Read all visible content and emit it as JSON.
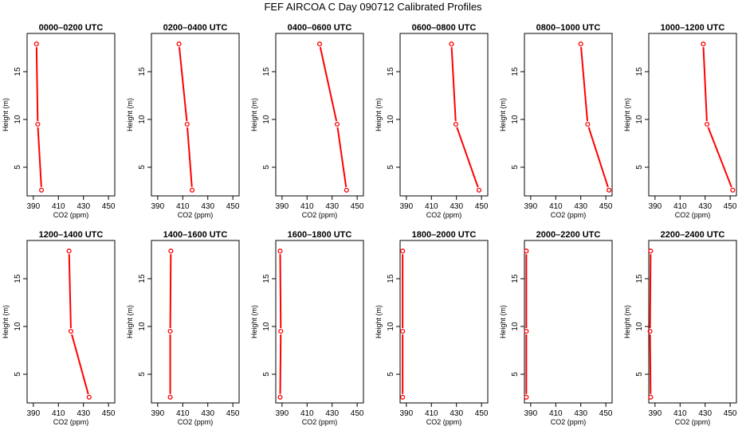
{
  "figure": {
    "title": "FEF AIRCOA C  Day 090712  Calibrated Profiles"
  },
  "style": {
    "line_color": "#ff0000",
    "axis_color": "#000000"
  },
  "chart_data": [
    {
      "type": "line",
      "title": "0000–0200 UTC",
      "xlabel": "CO2 (ppm)",
      "ylabel": "Height (m)",
      "xlim": [
        385,
        455
      ],
      "ylim": [
        2,
        19
      ],
      "xticks": [
        390,
        410,
        430,
        450
      ],
      "yticks": [
        5,
        10,
        15
      ],
      "x": [
        392.5,
        393.5,
        396.5
      ],
      "y": [
        17.9,
        9.5,
        2.6
      ]
    },
    {
      "type": "line",
      "title": "0200–0400 UTC",
      "xlabel": "CO2 (ppm)",
      "ylabel": "Height (m)",
      "xlim": [
        385,
        455
      ],
      "ylim": [
        2,
        19
      ],
      "xticks": [
        390,
        410,
        430,
        450
      ],
      "yticks": [
        5,
        10,
        15
      ],
      "x": [
        407.0,
        413.5,
        417.5
      ],
      "y": [
        17.9,
        9.5,
        2.6
      ]
    },
    {
      "type": "line",
      "title": "0400–0600 UTC",
      "xlabel": "CO2 (ppm)",
      "ylabel": "Height (m)",
      "xlim": [
        385,
        455
      ],
      "ylim": [
        2,
        19
      ],
      "xticks": [
        390,
        410,
        430,
        450
      ],
      "yticks": [
        5,
        10,
        15
      ],
      "x": [
        420.0,
        434.0,
        441.5
      ],
      "y": [
        17.9,
        9.5,
        2.6
      ]
    },
    {
      "type": "line",
      "title": "0600–0800 UTC",
      "xlabel": "CO2 (ppm)",
      "ylabel": "Height (m)",
      "xlim": [
        385,
        455
      ],
      "ylim": [
        2,
        19
      ],
      "xticks": [
        390,
        410,
        430,
        450
      ],
      "yticks": [
        5,
        10,
        15
      ],
      "x": [
        426.0,
        429.5,
        448.0
      ],
      "y": [
        17.9,
        9.5,
        2.6
      ]
    },
    {
      "type": "line",
      "title": "0800–1000 UTC",
      "xlabel": "CO2 (ppm)",
      "ylabel": "Height (m)",
      "xlim": [
        385,
        455
      ],
      "ylim": [
        2,
        19
      ],
      "xticks": [
        390,
        410,
        430,
        450
      ],
      "yticks": [
        5,
        10,
        15
      ],
      "x": [
        430.0,
        435.5,
        452.5
      ],
      "y": [
        17.9,
        9.5,
        2.6
      ]
    },
    {
      "type": "line",
      "title": "1000–1200 UTC",
      "xlabel": "CO2 (ppm)",
      "ylabel": "Height (m)",
      "xlim": [
        385,
        455
      ],
      "ylim": [
        2,
        19
      ],
      "xticks": [
        390,
        410,
        430,
        450
      ],
      "yticks": [
        5,
        10,
        15
      ],
      "x": [
        428.5,
        431.5,
        452.0
      ],
      "y": [
        17.9,
        9.5,
        2.6
      ]
    },
    {
      "type": "line",
      "title": "1200–1400 UTC",
      "xlabel": "CO2 (ppm)",
      "ylabel": "Height (m)",
      "xlim": [
        385,
        455
      ],
      "ylim": [
        2,
        19
      ],
      "xticks": [
        390,
        410,
        430,
        450
      ],
      "yticks": [
        5,
        10,
        15
      ],
      "x": [
        418.5,
        420.0,
        434.5
      ],
      "y": [
        17.9,
        9.5,
        2.6
      ]
    },
    {
      "type": "line",
      "title": "1400–1600 UTC",
      "xlabel": "CO2 (ppm)",
      "ylabel": "Height (m)",
      "xlim": [
        385,
        455
      ],
      "ylim": [
        2,
        19
      ],
      "xticks": [
        390,
        410,
        430,
        450
      ],
      "yticks": [
        5,
        10,
        15
      ],
      "x": [
        400.5,
        400.0,
        400.0
      ],
      "y": [
        17.9,
        9.5,
        2.6
      ]
    },
    {
      "type": "line",
      "title": "1600–1800 UTC",
      "xlabel": "CO2 (ppm)",
      "ylabel": "Height (m)",
      "xlim": [
        385,
        455
      ],
      "ylim": [
        2,
        19
      ],
      "xticks": [
        390,
        410,
        430,
        450
      ],
      "yticks": [
        5,
        10,
        15
      ],
      "x": [
        388.5,
        389.0,
        388.5
      ],
      "y": [
        17.9,
        9.5,
        2.6
      ]
    },
    {
      "type": "line",
      "title": "1800–2000 UTC",
      "xlabel": "CO2 (ppm)",
      "ylabel": "Height (m)",
      "xlim": [
        385,
        455
      ],
      "ylim": [
        2,
        19
      ],
      "xticks": [
        390,
        410,
        430,
        450
      ],
      "yticks": [
        5,
        10,
        15
      ],
      "x": [
        387.0,
        387.0,
        387.0
      ],
      "y": [
        17.9,
        9.5,
        2.6
      ]
    },
    {
      "type": "line",
      "title": "2000–2200 UTC",
      "xlabel": "CO2 (ppm)",
      "ylabel": "Height (m)",
      "xlim": [
        385,
        455
      ],
      "ylim": [
        2,
        19
      ],
      "xticks": [
        390,
        410,
        430,
        450
      ],
      "yticks": [
        5,
        10,
        15
      ],
      "x": [
        386.5,
        386.5,
        386.5
      ],
      "y": [
        17.9,
        9.5,
        2.6
      ]
    },
    {
      "type": "line",
      "title": "2200–2400 UTC",
      "xlabel": "CO2 (ppm)",
      "ylabel": "Height (m)",
      "xlim": [
        385,
        455
      ],
      "ylim": [
        2,
        19
      ],
      "xticks": [
        390,
        410,
        430,
        450
      ],
      "yticks": [
        5,
        10,
        15
      ],
      "x": [
        386.5,
        386.0,
        386.5
      ],
      "y": [
        17.9,
        9.5,
        2.6
      ]
    }
  ]
}
